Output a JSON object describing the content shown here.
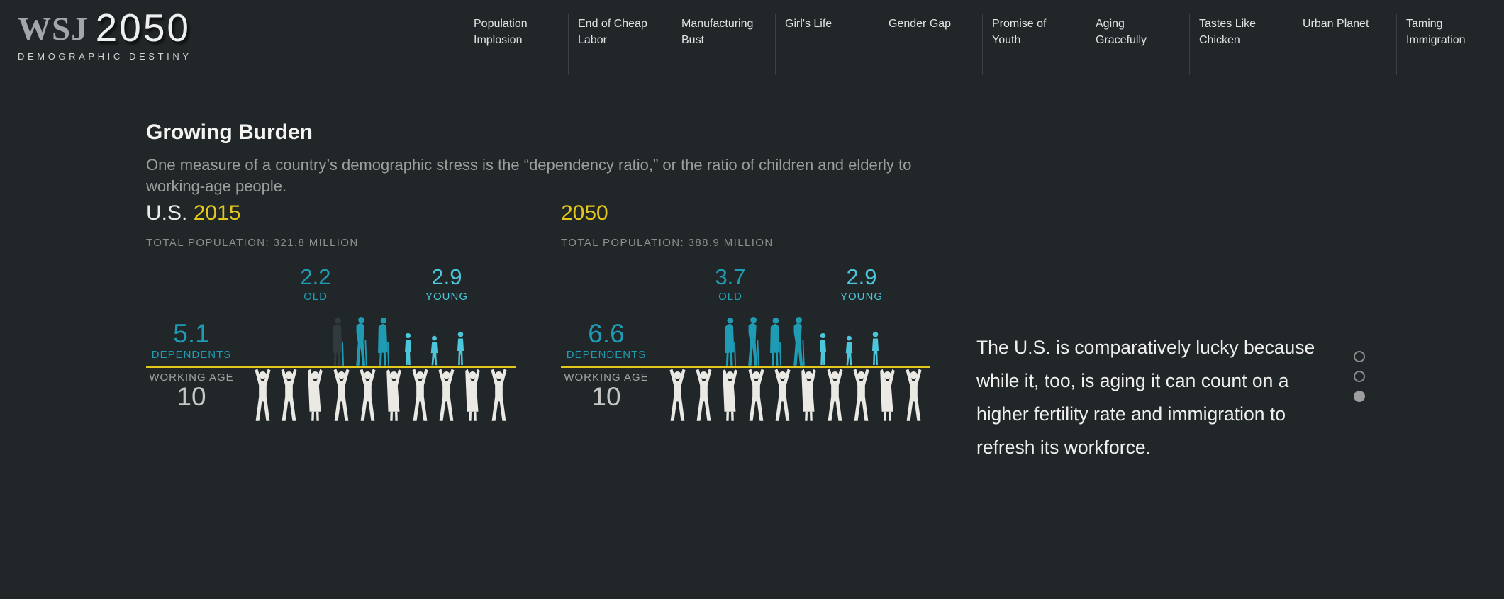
{
  "brand": {
    "wsj": "WSJ",
    "year": "2050",
    "tagline": "DEMOGRAPHIC DESTINY"
  },
  "nav": {
    "items": [
      {
        "label": "Population Implosion"
      },
      {
        "label": "End of Cheap Labor"
      },
      {
        "label": "Manufacturing Bust"
      },
      {
        "label": "Girl's Life"
      },
      {
        "label": "Gender Gap"
      },
      {
        "label": "Promise of Youth"
      },
      {
        "label": "Aging Gracefully"
      },
      {
        "label": "Tastes Like Chicken"
      },
      {
        "label": "Urban Planet"
      },
      {
        "label": "Taming Immigration"
      }
    ]
  },
  "intro": {
    "title": "Growing Burden",
    "subtitle": "One measure of a country’s demographic stress is the “dependency ratio,” or the ratio of children and elderly to working-age people."
  },
  "caption": {
    "text": "The U.S. is comparatively lucky because while it, too, is aging it can count on a higher fertility rate and immigration to refresh its workforce."
  },
  "pagination": {
    "dots": [
      {
        "state": "inactive"
      },
      {
        "state": "inactive"
      },
      {
        "state": "active"
      }
    ]
  },
  "colors": {
    "accent_yellow": "#e4c71d",
    "teal_old": "#1f9cb4",
    "teal_young": "#4cc6db",
    "figure_dim": "#313a3d",
    "worker_white": "#eae9e3"
  },
  "chart_data": [
    {
      "type": "pictogram",
      "title_prefix": "U.S.",
      "year": "2015",
      "total_label": "TOTAL POPULATION: 321.8 MILLION",
      "old": 2.2,
      "old_label": "OLD",
      "young": 2.9,
      "young_label": "YOUNG",
      "dependents": 5.1,
      "dependents_label": "DEPENDENTS",
      "working_age": 10,
      "working_age_label": "WORKING AGE"
    },
    {
      "type": "pictogram",
      "title_prefix": "",
      "year": "2050",
      "total_label": "TOTAL POPULATION: 388.9 MILLION",
      "old": 3.7,
      "old_label": "OLD",
      "young": 2.9,
      "young_label": "YOUNG",
      "dependents": 6.6,
      "dependents_label": "DEPENDENTS",
      "working_age": 10,
      "working_age_label": "WORKING AGE"
    }
  ]
}
